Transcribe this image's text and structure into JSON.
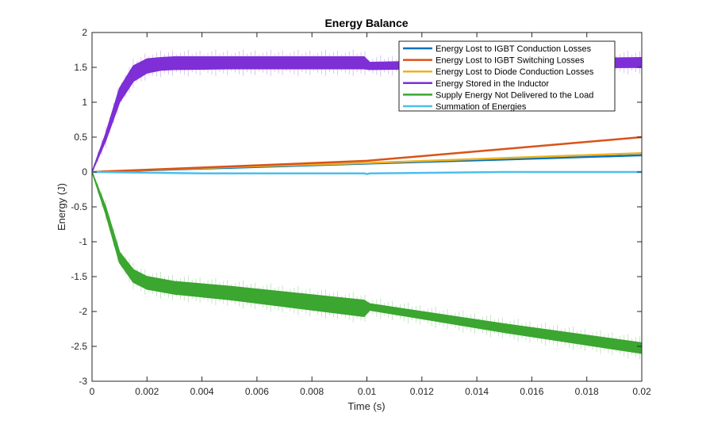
{
  "chart_data": {
    "type": "line",
    "title": "Energy Balance",
    "xlabel": "Time (s)",
    "ylabel": "Energy (J)",
    "xlim": [
      0,
      0.02
    ],
    "ylim": [
      -3,
      2
    ],
    "xticks": [
      0,
      0.002,
      0.004,
      0.006,
      0.008,
      0.01,
      0.012,
      0.014,
      0.016,
      0.018,
      0.02
    ],
    "xtick_labels": [
      "0",
      "0.002",
      "0.004",
      "0.006",
      "0.008",
      "0.01",
      "0.012",
      "0.014",
      "0.016",
      "0.018",
      "0.02"
    ],
    "yticks": [
      -3,
      -2.5,
      -2,
      -1.5,
      -1,
      -0.5,
      0,
      0.5,
      1,
      1.5,
      2
    ],
    "ytick_labels": [
      "-3",
      "-2.5",
      "-2",
      "-1.5",
      "-1",
      "-0.5",
      "0",
      "0.5",
      "1",
      "1.5",
      "2"
    ],
    "grid": false,
    "legend_position": "top-right",
    "series": [
      {
        "name": "Energy Lost to IGBT Conduction Losses",
        "color": "#0072BD",
        "x": [
          0,
          0.005,
          0.01,
          0.015,
          0.02
        ],
        "y": [
          0,
          0.06,
          0.12,
          0.18,
          0.24
        ]
      },
      {
        "name": "Energy Lost to IGBT Switching Losses",
        "color": "#D95319",
        "x": [
          0,
          0.005,
          0.01,
          0.015,
          0.02
        ],
        "y": [
          0,
          0.08,
          0.16,
          0.33,
          0.5
        ]
      },
      {
        "name": "Energy Lost to Diode Conduction Losses",
        "color": "#EDB120",
        "x": [
          0,
          0.005,
          0.01,
          0.015,
          0.02
        ],
        "y": [
          0,
          0.07,
          0.13,
          0.2,
          0.27
        ]
      },
      {
        "name": "Energy Stored in the Inductor",
        "color": "#7E2FD6",
        "band": true,
        "x": [
          0,
          0.0005,
          0.001,
          0.0015,
          0.002,
          0.0025,
          0.003,
          0.005,
          0.0099,
          0.0101,
          0.015,
          0.02
        ],
        "y_upper": [
          0,
          0.55,
          1.2,
          1.52,
          1.62,
          1.64,
          1.65,
          1.65,
          1.65,
          1.57,
          1.61,
          1.64
        ],
        "y_lower": [
          0,
          0.45,
          1.0,
          1.3,
          1.42,
          1.46,
          1.47,
          1.48,
          1.48,
          1.47,
          1.49,
          1.5
        ]
      },
      {
        "name": "Supply Energy Not Delivered to the Load",
        "color": "#3BA630",
        "band": true,
        "x": [
          0,
          0.0005,
          0.001,
          0.0015,
          0.002,
          0.003,
          0.005,
          0.0099,
          0.0101,
          0.015,
          0.02
        ],
        "y_upper": [
          0,
          -0.5,
          -1.15,
          -1.4,
          -1.5,
          -1.57,
          -1.64,
          -1.84,
          -1.89,
          -2.18,
          -2.45
        ],
        "y_lower": [
          0,
          -0.6,
          -1.3,
          -1.58,
          -1.68,
          -1.75,
          -1.83,
          -2.07,
          -1.98,
          -2.3,
          -2.6
        ]
      },
      {
        "name": "Summation of Energies",
        "color": "#4DBEEE",
        "x": [
          0,
          0.004,
          0.0099,
          0.01,
          0.0101,
          0.015,
          0.02
        ],
        "y": [
          0,
          -0.02,
          -0.02,
          -0.03,
          -0.02,
          0,
          0
        ]
      }
    ]
  }
}
